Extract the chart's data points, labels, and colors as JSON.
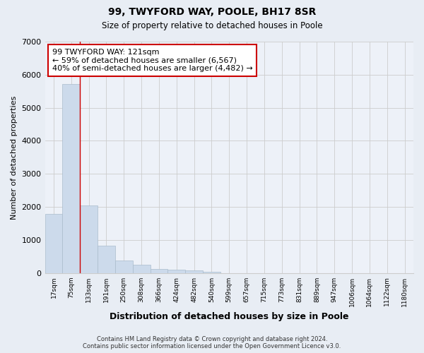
{
  "title": "99, TWYFORD WAY, POOLE, BH17 8SR",
  "subtitle": "Size of property relative to detached houses in Poole",
  "xlabel": "Distribution of detached houses by size in Poole",
  "ylabel": "Number of detached properties",
  "categories": [
    "17sqm",
    "75sqm",
    "133sqm",
    "191sqm",
    "250sqm",
    "308sqm",
    "366sqm",
    "424sqm",
    "482sqm",
    "540sqm",
    "599sqm",
    "657sqm",
    "715sqm",
    "773sqm",
    "831sqm",
    "889sqm",
    "947sqm",
    "1006sqm",
    "1064sqm",
    "1122sqm",
    "1180sqm"
  ],
  "values": [
    1780,
    5720,
    2050,
    830,
    380,
    240,
    130,
    100,
    70,
    40,
    0,
    0,
    0,
    0,
    0,
    0,
    0,
    0,
    0,
    0,
    0
  ],
  "bar_color": "#ccdaeb",
  "bar_edge_color": "#aabccc",
  "annotation_text_line1": "99 TWYFORD WAY: 121sqm",
  "annotation_text_line2": "← 59% of detached houses are smaller (6,567)",
  "annotation_text_line3": "40% of semi-detached houses are larger (4,482) →",
  "annotation_box_color": "#ffffff",
  "annotation_box_edge_color": "#cc0000",
  "ylim": [
    0,
    7000
  ],
  "yticks": [
    0,
    1000,
    2000,
    3000,
    4000,
    5000,
    6000,
    7000
  ],
  "grid_color": "#cccccc",
  "background_color": "#e8edf4",
  "plot_bg_color": "#edf1f8",
  "footer_line1": "Contains HM Land Registry data © Crown copyright and database right 2024.",
  "footer_line2": "Contains public sector information licensed under the Open Government Licence v3.0.",
  "red_line_x": 2
}
